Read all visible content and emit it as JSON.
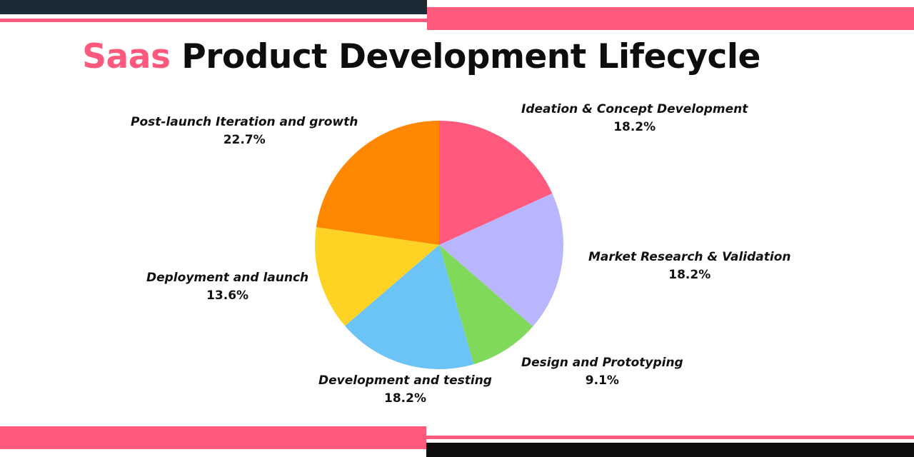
{
  "title": {
    "accent": "Saas",
    "rest": "Product Development Lifecycle"
  },
  "colors": {
    "pink": "#ff5a7d",
    "dark": "#1b2a34",
    "black": "#0e0e0e"
  },
  "chart_data": {
    "type": "pie",
    "title": "Saas Product Development Lifecycle",
    "start_angle_deg": 0,
    "direction": "clockwise",
    "slices": [
      {
        "label": "Ideation & Concept Development",
        "value": 18.2,
        "display": "18.2%",
        "color": "#ff5a7d"
      },
      {
        "label": "Market Research & Validation",
        "value": 18.2,
        "display": "18.2%",
        "color": "#b9b6ff"
      },
      {
        "label": "Design and Prototyping",
        "value": 9.1,
        "display": "9.1%",
        "color": "#80d95a"
      },
      {
        "label": "Development and testing",
        "value": 18.2,
        "display": "18.2%",
        "color": "#6bc4f5"
      },
      {
        "label": "Deployment and launch",
        "value": 13.6,
        "display": "13.6%",
        "color": "#ffd324"
      },
      {
        "label": "Post-launch Iteration and growth",
        "value": 22.7,
        "display": "22.7%",
        "color": "#ff8800"
      }
    ]
  }
}
